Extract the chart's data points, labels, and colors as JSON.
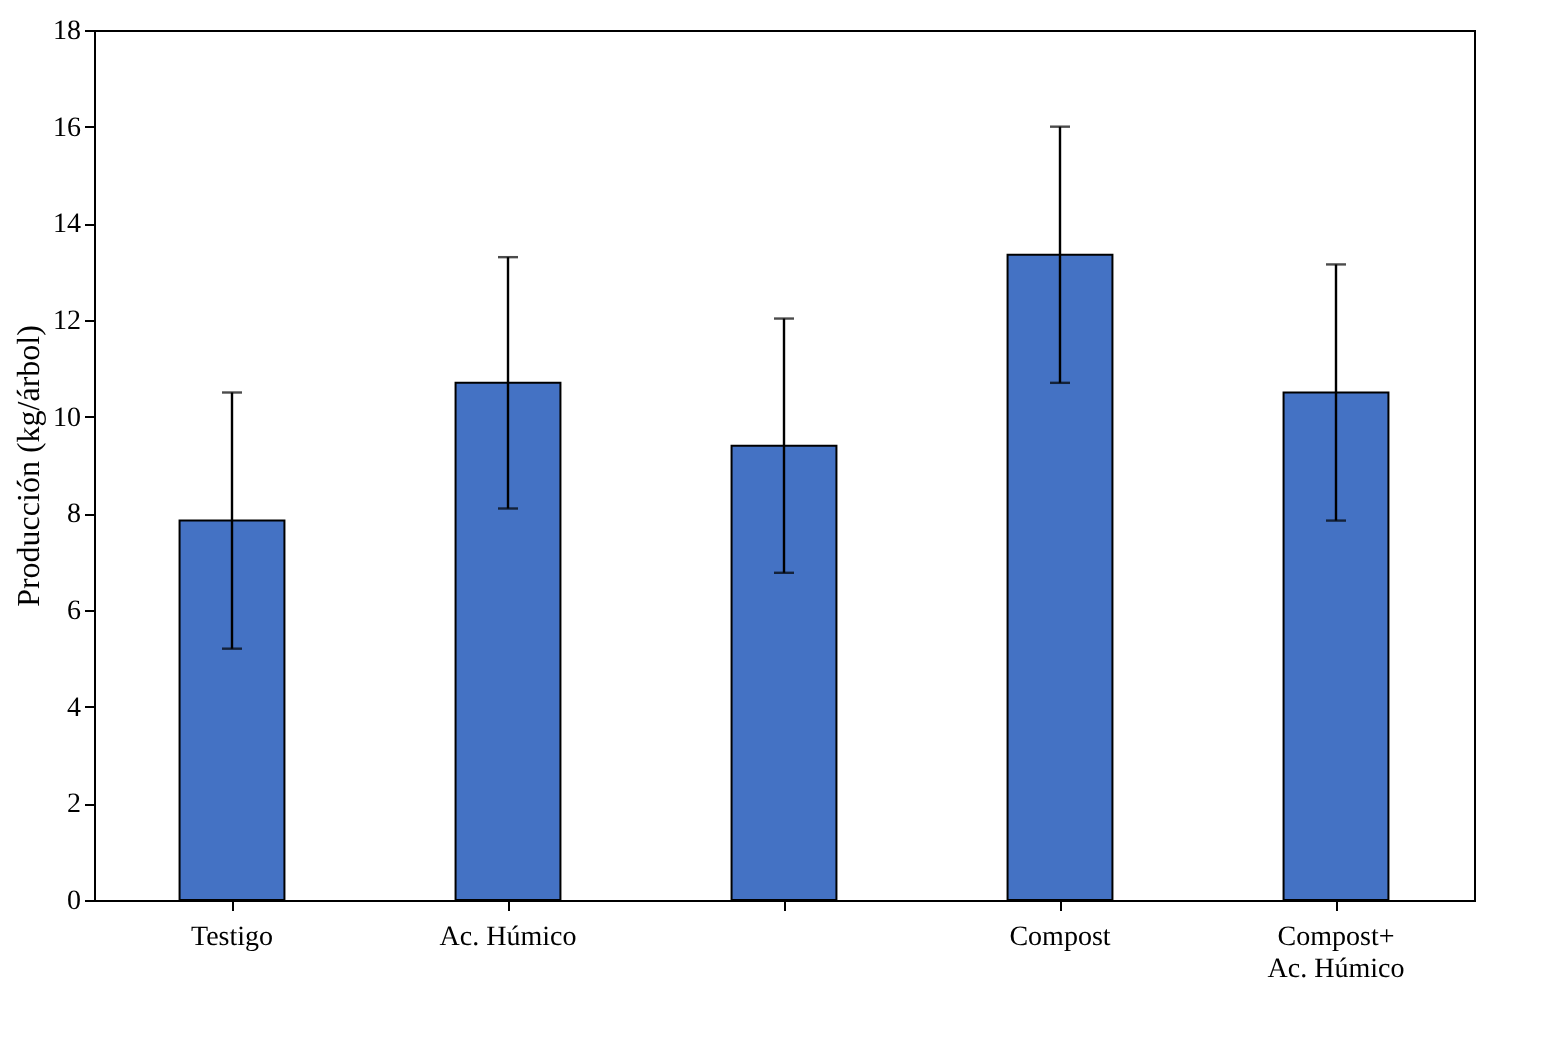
{
  "chart_data": {
    "type": "bar",
    "ylabel": "Producción (kg/árbol)",
    "categories": [
      "Testigo",
      "Ac. Húmico",
      null,
      "Compost",
      "Compost+\nAc. Húmico"
    ],
    "values": [
      7.85,
      10.7,
      9.4,
      13.35,
      10.5
    ],
    "errors": [
      2.65,
      2.6,
      2.63,
      2.65,
      2.65
    ],
    "color": "#4472c4",
    "ylim": [
      0,
      18
    ],
    "yticks": [
      0,
      2,
      4,
      6,
      8,
      10,
      12,
      14,
      16,
      18
    ],
    "grid": false
  }
}
